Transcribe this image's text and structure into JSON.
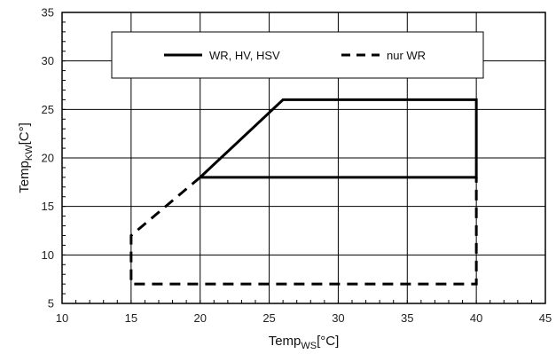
{
  "chart_data": {
    "type": "line",
    "title": "",
    "xlabel": {
      "base": "Temp",
      "sub": "WS",
      "unit": "[°C]"
    },
    "ylabel": {
      "base": "Temp",
      "sub": "KW",
      "unit": "[C°]"
    },
    "xlim": [
      10,
      45
    ],
    "ylim": [
      5,
      35
    ],
    "xticks": [
      "10",
      "15",
      "20",
      "25",
      "30",
      "35",
      "40",
      "45"
    ],
    "yticks": [
      "5",
      "10",
      "15",
      "20",
      "25",
      "30",
      "35"
    ],
    "grid": true,
    "legend_position": "top",
    "series": [
      {
        "name": "WR, HV, HSV",
        "style": "solid",
        "color": "#000000",
        "x": [
          20,
          26,
          40,
          40,
          20
        ],
        "y": [
          18,
          26,
          26,
          18,
          18
        ]
      },
      {
        "name": "nur WR",
        "style": "dashed",
        "color": "#000000",
        "x": [
          20,
          15,
          15,
          40,
          40
        ],
        "y": [
          18,
          12,
          7,
          7,
          18
        ]
      }
    ]
  }
}
